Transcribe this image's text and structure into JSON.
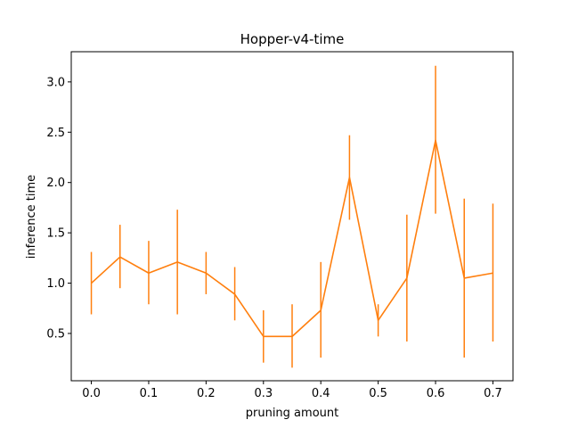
{
  "chart_data": {
    "type": "line",
    "title": "Hopper-v4-time",
    "xlabel": "pruning amount",
    "ylabel": "inference time",
    "xlim": [
      -0.035,
      0.735
    ],
    "ylim": [
      0.03,
      3.3
    ],
    "xticks": [
      0.0,
      0.1,
      0.2,
      0.3,
      0.4,
      0.5,
      0.6,
      0.7
    ],
    "xtick_labels": [
      "0.0",
      "0.1",
      "0.2",
      "0.3",
      "0.4",
      "0.5",
      "0.6",
      "0.7"
    ],
    "yticks": [
      0.5,
      1.0,
      1.5,
      2.0,
      2.5,
      3.0
    ],
    "ytick_labels": [
      "0.5",
      "1.0",
      "1.5",
      "2.0",
      "2.5",
      "3.0"
    ],
    "grid": false,
    "series": [
      {
        "color": "#ff7f0e",
        "errorbar_color": "#ff7f0e",
        "x": [
          0.0,
          0.05,
          0.1,
          0.15,
          0.2,
          0.25,
          0.3,
          0.35,
          0.4,
          0.45,
          0.5,
          0.55,
          0.6,
          0.65,
          0.7
        ],
        "y": [
          1.0,
          1.26,
          1.1,
          1.21,
          1.1,
          0.89,
          0.47,
          0.47,
          0.73,
          2.05,
          0.63,
          1.05,
          2.42,
          1.05,
          1.1
        ],
        "yerr_low": [
          0.69,
          0.95,
          0.79,
          0.69,
          0.89,
          0.63,
          0.21,
          0.16,
          0.26,
          1.63,
          0.47,
          0.42,
          1.69,
          0.26,
          0.42
        ],
        "yerr_high": [
          1.31,
          1.58,
          1.42,
          1.73,
          1.31,
          1.16,
          0.73,
          0.79,
          1.21,
          2.47,
          0.79,
          1.68,
          3.16,
          1.84,
          1.79
        ]
      }
    ]
  }
}
